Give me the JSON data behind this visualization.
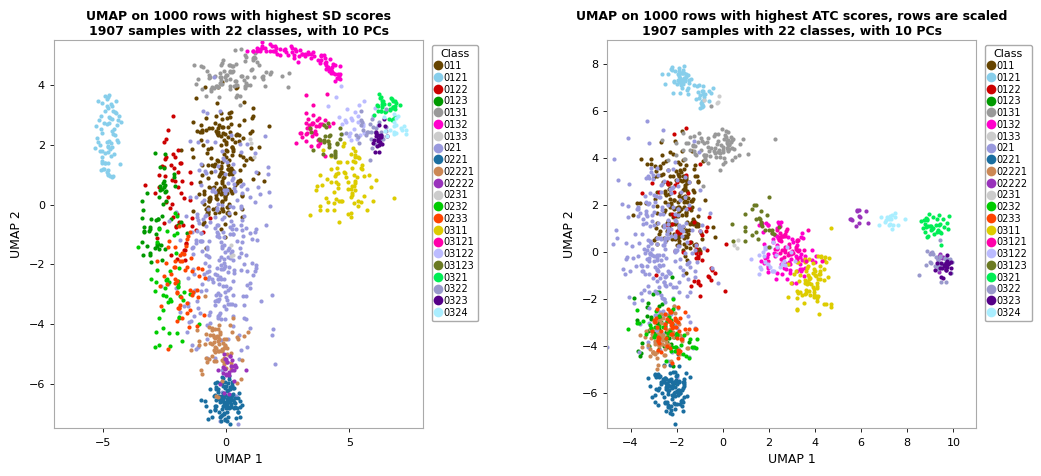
{
  "title1": "UMAP on 1000 rows with highest SD scores\n1907 samples with 22 classes, with 10 PCs",
  "title2": "UMAP on 1000 rows with highest ATC scores, rows are scaled\n1907 samples with 22 classes, with 10 PCs",
  "xlabel": "UMAP 1",
  "ylabel": "UMAP 2",
  "legend_title": "Class",
  "classes": [
    "011",
    "0121",
    "0122",
    "0123",
    "0131",
    "0132",
    "0133",
    "021",
    "0221",
    "02221",
    "02222",
    "0231",
    "0232",
    "0233",
    "0311",
    "03121",
    "03122",
    "03123",
    "0321",
    "0322",
    "0323",
    "0324"
  ],
  "colors": [
    "#664400",
    "#87CEEB",
    "#CC0000",
    "#00AA00",
    "#999999",
    "#FF00FF",
    "#FFFFFF",
    "#9999DD",
    "#1E6EA8",
    "#CC8866",
    "#9933CC",
    "#FFFFFF",
    "#00CC00",
    "#FF4400",
    "#DDCC00",
    "#FF00AA",
    "#BBBBFF",
    "#6B8E23",
    "#00EE66",
    "#9999CC",
    "#550088",
    "#AAEEFF"
  ],
  "plot1_xlim": [
    -7,
    8
  ],
  "plot1_ylim": [
    -7.5,
    5.5
  ],
  "plot1_xticks": [
    -5,
    0,
    5
  ],
  "plot1_yticks": [
    -6,
    -4,
    -2,
    0,
    2,
    4
  ],
  "plot2_xlim": [
    -5,
    11
  ],
  "plot2_ylim": [
    -7.5,
    9
  ],
  "plot2_xticks": [
    -4,
    -2,
    0,
    2,
    4,
    6,
    8,
    10
  ],
  "plot2_yticks": [
    -6,
    -4,
    -2,
    0,
    2,
    4,
    6,
    8
  ],
  "point_size": 9,
  "bg_color": "#FFFFFF",
  "spine_color": "#AAAAAA",
  "legend_dot_size": 7,
  "title_fontsize": 9,
  "axis_fontsize": 9,
  "tick_fontsize": 8,
  "legend_fontsize": 7,
  "legend_title_fontsize": 8
}
